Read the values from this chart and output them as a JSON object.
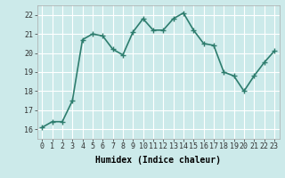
{
  "x": [
    0,
    1,
    2,
    3,
    4,
    5,
    6,
    7,
    8,
    9,
    10,
    11,
    12,
    13,
    14,
    15,
    16,
    17,
    18,
    19,
    20,
    21,
    22,
    23
  ],
  "y": [
    16.1,
    16.4,
    16.4,
    17.5,
    20.7,
    21.0,
    20.9,
    20.2,
    19.9,
    21.1,
    21.8,
    21.2,
    21.2,
    21.8,
    22.1,
    21.2,
    20.5,
    20.4,
    19.0,
    18.8,
    18.0,
    18.8,
    19.5,
    20.1
  ],
  "color": "#2e7d6e",
  "bg_color": "#cceaea",
  "grid_color": "#ffffff",
  "xlabel": "Humidex (Indice chaleur)",
  "ylim": [
    15.5,
    22.5
  ],
  "xlim": [
    -0.5,
    23.5
  ],
  "yticks": [
    16,
    17,
    18,
    19,
    20,
    21,
    22
  ],
  "marker": "+",
  "marker_size": 4,
  "line_width": 1.2,
  "tick_fontsize": 6,
  "xlabel_fontsize": 7
}
